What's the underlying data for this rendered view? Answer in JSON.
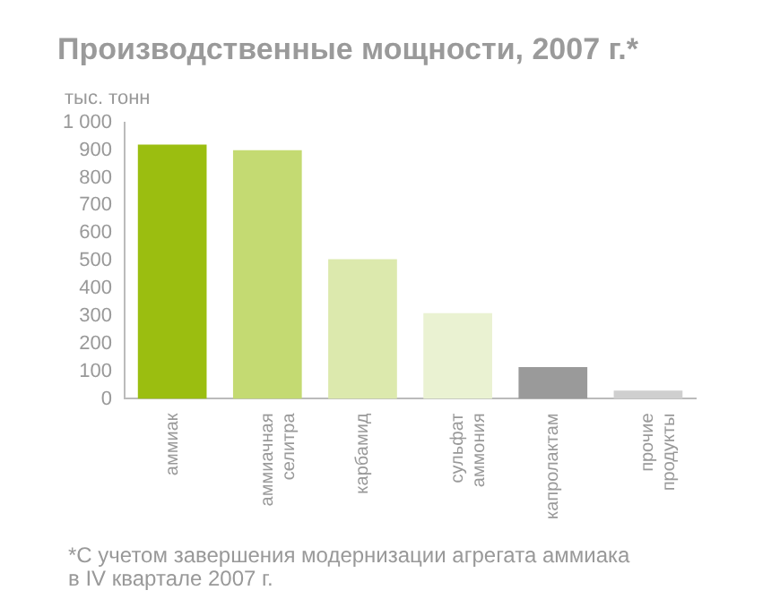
{
  "chart_data": {
    "type": "bar",
    "title": "Производственные мощности, 2007 г.*",
    "ylabel": "тыс. тонн",
    "categories": [
      "аммиак",
      "аммиачная\nселитра",
      "карбамид",
      "сульфат\nаммония",
      "капролактам",
      "прочие\nпродукты"
    ],
    "values": [
      920,
      900,
      505,
      310,
      115,
      30
    ],
    "colors": [
      "#9bbe10",
      "#c4da72",
      "#dce9ad",
      "#eaf2d2",
      "#9a9a9a",
      "#cfcfcf"
    ],
    "ylim": [
      0,
      1000
    ],
    "yticks": [
      0,
      100,
      200,
      300,
      400,
      500,
      600,
      700,
      800,
      900,
      {
        "value": 1000,
        "label": "1 000"
      }
    ],
    "grid": false,
    "legend": false,
    "annotations": [
      "*С учетом завершения модернизации агрегата аммиака в IV квартале 2007 г."
    ]
  }
}
